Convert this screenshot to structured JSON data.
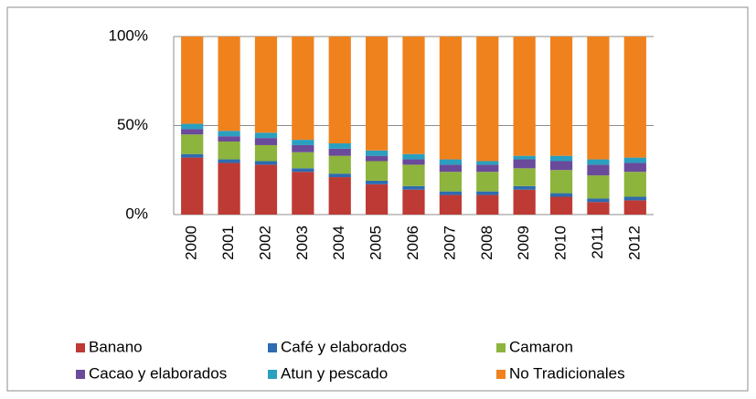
{
  "chart_data": {
    "type": "stacked_bar_100",
    "categories": [
      "2000",
      "2001",
      "2002",
      "2003",
      "2004",
      "2005",
      "2006",
      "2007",
      "2008",
      "2009",
      "2010",
      "2011",
      "2012"
    ],
    "series": [
      {
        "name": "Banano",
        "color": "#be3a34",
        "values": [
          32,
          29,
          28,
          24,
          21,
          17,
          14,
          11,
          11,
          14,
          10,
          7,
          8
        ]
      },
      {
        "name": "Café y elaborados",
        "color": "#2e6bb0",
        "values": [
          2,
          2,
          2,
          2,
          2,
          2,
          2,
          2,
          2,
          2,
          2,
          2,
          2
        ]
      },
      {
        "name": "Camaron",
        "color": "#8db43c",
        "values": [
          11,
          10,
          9,
          9,
          10,
          11,
          12,
          11,
          11,
          10,
          13,
          13,
          14
        ]
      },
      {
        "name": "Cacao y elaborados",
        "color": "#6a4a9a",
        "values": [
          3,
          3,
          4,
          4,
          4,
          3,
          3,
          4,
          4,
          5,
          5,
          6,
          5
        ]
      },
      {
        "name": "Atun y pescado",
        "color": "#2a9fbf",
        "values": [
          3,
          3,
          3,
          3,
          3,
          3,
          3,
          3,
          2,
          2,
          3,
          3,
          3
        ]
      },
      {
        "name": "No Tradicionales",
        "color": "#f0821e",
        "values": [
          49,
          53,
          54,
          58,
          60,
          64,
          66,
          69,
          70,
          67,
          67,
          69,
          68
        ]
      }
    ],
    "ylim": [
      0,
      100
    ],
    "yticks": [
      {
        "value": 0,
        "label": "0%"
      },
      {
        "value": 50,
        "label": "50%"
      },
      {
        "value": 100,
        "label": "100%"
      }
    ],
    "grid": true
  }
}
